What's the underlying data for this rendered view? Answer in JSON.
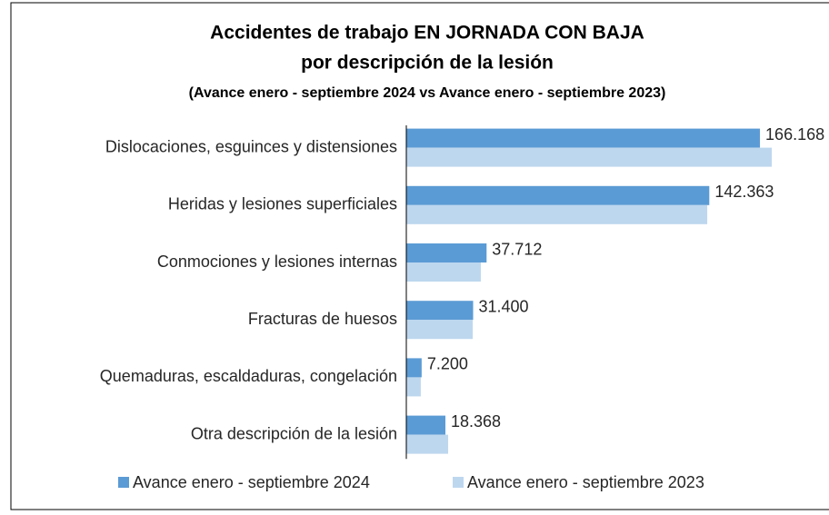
{
  "chart_data": {
    "type": "bar",
    "orientation": "horizontal",
    "title": "Accidentes de trabajo EN JORNADA CON BAJA",
    "subtitle": "por descripción de la lesión",
    "subtitle2": "(Avance enero - septiembre 2024 vs Avance enero - septiembre 2023)",
    "categories": [
      "Dislocaciones, esguinces y distensiones",
      "Heridas y lesiones superficiales",
      "Conmociones y lesiones internas",
      "Fracturas de huesos",
      "Quemaduras, escaldaduras, congelación",
      "Otra descripción de la lesión"
    ],
    "series": [
      {
        "name": "Avance enero - septiembre 2024",
        "color": "#5b9bd5",
        "values": [
          166168,
          142363,
          37712,
          31400,
          7200,
          18368
        ],
        "value_labels": [
          "166.168",
          "142.363",
          "37.712",
          "31.400",
          "7.200",
          "18.368"
        ]
      },
      {
        "name": "Avance enero - septiembre 2023",
        "color": "#bdd7ee",
        "values": [
          171700,
          141400,
          35000,
          31200,
          6800,
          19650
        ]
      }
    ]
  }
}
